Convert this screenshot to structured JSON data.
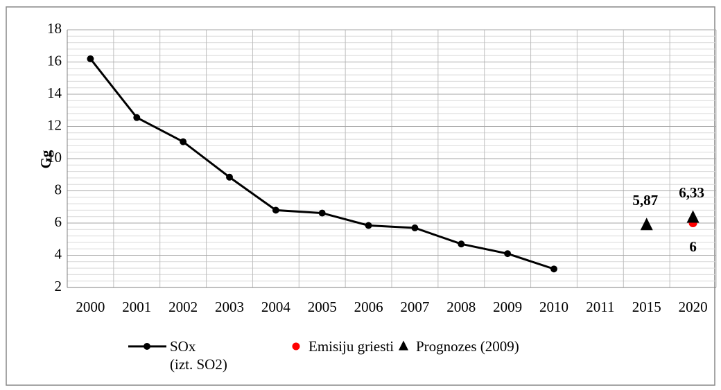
{
  "chart_data": {
    "type": "line",
    "y_label": "Gg",
    "categories": [
      "2000",
      "2001",
      "2002",
      "2003",
      "2004",
      "2005",
      "2006",
      "2007",
      "2008",
      "2009",
      "2010",
      "2011",
      "2015",
      "2020"
    ],
    "series": [
      {
        "name": "SOx\n(izt. SO2)",
        "color": "#000000",
        "line": true,
        "marker": "circle",
        "values": [
          16.2,
          12.55,
          11.05,
          8.85,
          6.8,
          6.62,
          5.85,
          5.7,
          4.7,
          4.1,
          3.15,
          null,
          null,
          null
        ]
      },
      {
        "name": "Emisiju griesti",
        "color": "#ff0000",
        "line": false,
        "marker": "circle",
        "label_position": "below",
        "values": [
          null,
          null,
          null,
          null,
          null,
          null,
          null,
          null,
          null,
          null,
          null,
          null,
          null,
          6
        ],
        "value_labels": [
          null,
          null,
          null,
          null,
          null,
          null,
          null,
          null,
          null,
          null,
          null,
          null,
          null,
          "6"
        ]
      },
      {
        "name": "Prognozes (2009)",
        "color": "#000000",
        "line": false,
        "marker": "triangle",
        "label_position": "above",
        "values": [
          null,
          null,
          null,
          null,
          null,
          null,
          null,
          null,
          null,
          null,
          null,
          null,
          5.87,
          6.33
        ],
        "value_labels": [
          null,
          null,
          null,
          null,
          null,
          null,
          null,
          null,
          null,
          null,
          null,
          null,
          "5,87",
          "6,33"
        ]
      }
    ],
    "ylim": [
      2,
      18
    ],
    "yticks": [
      2,
      4,
      6,
      8,
      10,
      12,
      14,
      16,
      18
    ],
    "grid": true
  }
}
